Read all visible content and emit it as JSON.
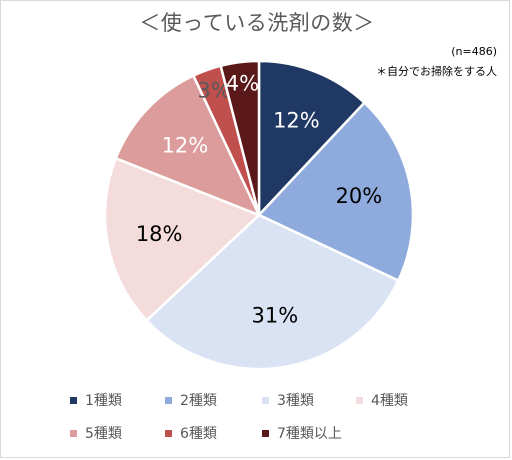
{
  "title": "＜使っている洗剤の数＞",
  "note_n": "(n=486)",
  "note_sub": "＊自分でお掃除をする人",
  "chart_data": {
    "type": "pie",
    "title": "＜使っている洗剤の数＞",
    "categories": [
      "1種類",
      "2種類",
      "3種類",
      "4種類",
      "5種類",
      "6種類",
      "7種類以上"
    ],
    "values": [
      12,
      20,
      31,
      18,
      12,
      3,
      4
    ],
    "labels": [
      "12%",
      "20%",
      "31%",
      "18%",
      "12%",
      "3%",
      "4%"
    ],
    "colors": [
      "#203864",
      "#8faadc",
      "#dae3f3",
      "#f4dcdc",
      "#dc9c9c",
      "#c0504d",
      "#5b1818"
    ],
    "label_colors": [
      "#ffffff",
      "#000000",
      "#000000",
      "#000000",
      "#ffffff",
      "#595959",
      "#ffffff"
    ],
    "start_angle_deg": 0,
    "direction": "clockwise",
    "legend_position": "bottom"
  }
}
